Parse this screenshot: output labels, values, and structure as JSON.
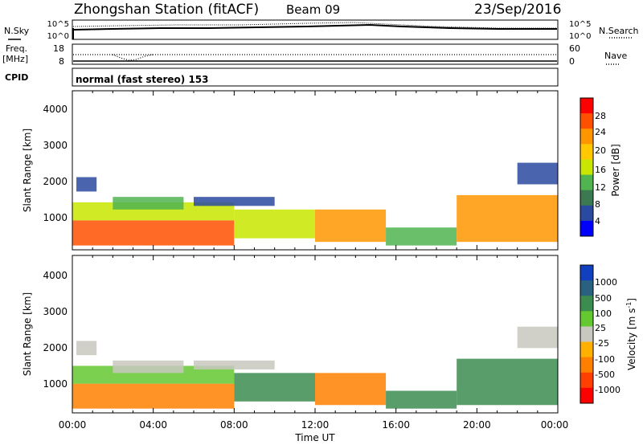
{
  "header": {
    "station": "Zhongshan Station (fitACF)",
    "beam": "Beam 09",
    "date": "23/Sep/2016"
  },
  "top_panel": {
    "nsky_label": "N.Sky",
    "nsearch_label": "N.Search",
    "left_ticks": [
      "10^5",
      "10^0"
    ],
    "right_ticks": [
      "10^5",
      "10^0"
    ],
    "freq_label_1": "Freq.",
    "freq_label_2": "[MHz]",
    "freq_ticks": [
      "18",
      "8"
    ],
    "nave_label": "Nave",
    "nave_ticks": [
      "60",
      "0"
    ],
    "cpid_label": "CPID",
    "cpid_text": "normal (fast stereo) 153"
  },
  "axes": {
    "ylabel": "Slant Range [km]",
    "xlabel": "Time UT",
    "yticks": [
      "4000",
      "3000",
      "2000",
      "1000"
    ],
    "xticks": [
      "00:00",
      "04:00",
      "08:00",
      "12:00",
      "16:00",
      "20:00",
      "00:00"
    ]
  },
  "power_colorbar": {
    "label": "Power [dB]",
    "ticks": [
      "28",
      "24",
      "20",
      "16",
      "12",
      "8",
      "4"
    ],
    "colors": [
      "#ff0000",
      "#ff5000",
      "#ff9600",
      "#ffc800",
      "#c8e600",
      "#50b450",
      "#3c7850",
      "#2a4aa0",
      "#0000ff"
    ]
  },
  "velocity_colorbar": {
    "label": "Velocity [m s",
    "label_sup": "-1",
    "label_end": "]",
    "ticks": [
      "1000",
      "500",
      "100",
      "25",
      "-25",
      "-100",
      "-500",
      "-1000"
    ],
    "colors": [
      "#1040c0",
      "#2a6080",
      "#3c8c50",
      "#64c830",
      "#c8c8c0",
      "#ffb000",
      "#ff8000",
      "#ff4000",
      "#ff0000"
    ]
  },
  "chart_data": {
    "type": "heatmap",
    "title": "",
    "x_range_hours": [
      0,
      24
    ],
    "y_range_km": [
      180,
      4600
    ],
    "panels": [
      {
        "name": "Power",
        "unit": "dB",
        "echo_regions": [
          {
            "t_start": 0.0,
            "t_end": 8.0,
            "range_min": 300,
            "range_max": 1000,
            "value": 26
          },
          {
            "t_start": 0.0,
            "t_end": 8.0,
            "range_min": 1000,
            "range_max": 1500,
            "value": 14
          },
          {
            "t_start": 0.2,
            "t_end": 1.2,
            "range_min": 1800,
            "range_max": 2200,
            "value": 6
          },
          {
            "t_start": 2.0,
            "t_end": 5.5,
            "range_min": 1300,
            "range_max": 1650,
            "value": 8
          },
          {
            "t_start": 6.0,
            "t_end": 10.0,
            "range_min": 1400,
            "range_max": 1650,
            "value": 6
          },
          {
            "t_start": 8.0,
            "t_end": 12.0,
            "range_min": 500,
            "range_max": 1300,
            "value": 15
          },
          {
            "t_start": 12.0,
            "t_end": 15.5,
            "range_min": 400,
            "range_max": 1300,
            "value": 20
          },
          {
            "t_start": 15.5,
            "t_end": 19.0,
            "range_min": 300,
            "range_max": 800,
            "value": 10
          },
          {
            "t_start": 19.0,
            "t_end": 24.0,
            "range_min": 400,
            "range_max": 1700,
            "value": 22
          },
          {
            "t_start": 22.0,
            "t_end": 24.0,
            "range_min": 2000,
            "range_max": 2600,
            "value": 6
          }
        ]
      },
      {
        "name": "Velocity",
        "unit": "m s^-1",
        "echo_regions": [
          {
            "t_start": 0.0,
            "t_end": 8.0,
            "range_min": 300,
            "range_max": 1000,
            "value": -200
          },
          {
            "t_start": 0.0,
            "t_end": 8.0,
            "range_min": 1000,
            "range_max": 1500,
            "value": 60
          },
          {
            "t_start": 0.2,
            "t_end": 1.2,
            "range_min": 1800,
            "range_max": 2200,
            "value": 0
          },
          {
            "t_start": 2.0,
            "t_end": 5.5,
            "range_min": 1300,
            "range_max": 1650,
            "value": 0
          },
          {
            "t_start": 6.0,
            "t_end": 10.0,
            "range_min": 1400,
            "range_max": 1650,
            "value": 0
          },
          {
            "t_start": 8.0,
            "t_end": 12.0,
            "range_min": 500,
            "range_max": 1300,
            "value": 150
          },
          {
            "t_start": 12.0,
            "t_end": 15.5,
            "range_min": 400,
            "range_max": 1300,
            "value": -300
          },
          {
            "t_start": 15.5,
            "t_end": 19.0,
            "range_min": 300,
            "range_max": 800,
            "value": 200
          },
          {
            "t_start": 19.0,
            "t_end": 24.0,
            "range_min": 400,
            "range_max": 1700,
            "value": 200
          },
          {
            "t_start": 22.0,
            "t_end": 24.0,
            "range_min": 2000,
            "range_max": 2600,
            "value": 0
          }
        ]
      }
    ]
  }
}
